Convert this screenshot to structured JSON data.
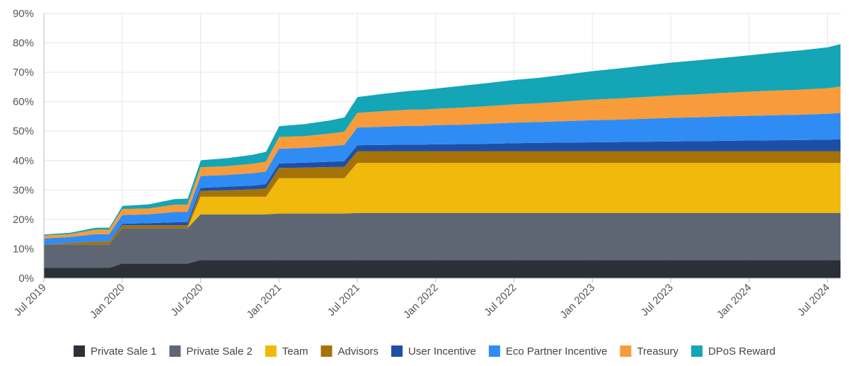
{
  "chart_data": {
    "type": "area",
    "stacked": true,
    "title": "",
    "xlabel": "",
    "ylabel": "",
    "ylim": [
      0,
      90
    ],
    "y_ticks": [
      "0%",
      "10%",
      "20%",
      "30%",
      "40%",
      "50%",
      "60%",
      "70%",
      "80%",
      "90%"
    ],
    "x_ticks": [
      "Jul 2019",
      "Jan 2020",
      "Jul 2020",
      "Jan 2021",
      "Jul 2021",
      "Jan 2022",
      "Jul 2022",
      "Jan 2023",
      "Jul 2023",
      "Jan 2024",
      "Jul 2024"
    ],
    "x_range_months": [
      0,
      61
    ],
    "x_months": [
      0,
      2,
      4,
      5,
      6,
      8,
      10,
      11,
      12,
      14,
      16,
      17,
      18,
      20,
      22,
      23,
      24,
      26,
      28,
      29,
      30,
      32,
      34,
      35,
      36,
      38,
      40,
      42,
      44,
      46,
      48,
      50,
      52,
      54,
      56,
      58,
      60,
      61
    ],
    "legend_position": "bottom",
    "series": [
      {
        "name": "Private Sale 1",
        "color": "#2b2f38",
        "values": [
          3.5,
          3.5,
          3.5,
          3.5,
          5,
          5,
          5,
          5,
          6.2,
          6.2,
          6.2,
          6.2,
          6.2,
          6.2,
          6.2,
          6.2,
          6.2,
          6.2,
          6.2,
          6.2,
          6.2,
          6.2,
          6.2,
          6.2,
          6.2,
          6.2,
          6.2,
          6.2,
          6.2,
          6.2,
          6.2,
          6.2,
          6.2,
          6.2,
          6.2,
          6.2,
          6.2,
          6.2
        ]
      },
      {
        "name": "Private Sale 2",
        "color": "#5f6673",
        "values": [
          8,
          8,
          8,
          8,
          12,
          12,
          12,
          12,
          15.5,
          15.5,
          15.5,
          15.5,
          15.8,
          15.8,
          15.8,
          15.8,
          16,
          16,
          16,
          16,
          16,
          16,
          16,
          16,
          16,
          16,
          16,
          16,
          16,
          16,
          16,
          16,
          16,
          16,
          16,
          16,
          16,
          16
        ]
      },
      {
        "name": "Team",
        "color": "#f0b90b",
        "values": [
          0,
          0,
          0,
          0,
          0,
          0,
          0,
          0,
          6,
          6,
          6,
          6,
          12,
          12,
          12,
          12,
          17,
          17,
          17,
          17,
          17,
          17,
          17,
          17,
          17,
          17,
          17,
          17,
          17,
          17,
          17,
          17,
          17,
          17,
          17,
          17,
          17,
          17
        ]
      },
      {
        "name": "Advisors",
        "color": "#a57208",
        "values": [
          0,
          0.5,
          1,
          1,
          1,
          1,
          1,
          1,
          2,
          2.2,
          2.5,
          2.8,
          3.5,
          3.6,
          3.8,
          3.8,
          4,
          4,
          4,
          4,
          4,
          4,
          4,
          4,
          4,
          4,
          4,
          4,
          4,
          4,
          4,
          4,
          4,
          4,
          4,
          4,
          4,
          4
        ]
      },
      {
        "name": "User Incentive",
        "color": "#1e4fa8",
        "values": [
          0,
          0,
          0,
          0,
          0.5,
          0.7,
          1,
          1,
          1,
          1.2,
          1.3,
          1.5,
          1.5,
          1.7,
          1.8,
          2,
          2,
          2.1,
          2.2,
          2.2,
          2.3,
          2.4,
          2.5,
          2.6,
          2.7,
          2.8,
          2.9,
          3,
          3.1,
          3.2,
          3.3,
          3.4,
          3.5,
          3.6,
          3.7,
          3.8,
          3.9,
          4
        ]
      },
      {
        "name": "Eco Partner Incentive",
        "color": "#2f8cf5",
        "values": [
          2,
          2,
          2.5,
          2.5,
          3,
          3,
          3.5,
          3.5,
          4,
          4,
          4.2,
          4.3,
          5,
          5,
          5.3,
          5.5,
          6,
          6.2,
          6.4,
          6.4,
          6.5,
          6.6,
          6.8,
          6.9,
          7,
          7.1,
          7.3,
          7.5,
          7.6,
          7.8,
          8,
          8.1,
          8.3,
          8.4,
          8.5,
          8.6,
          8.8,
          9
        ]
      },
      {
        "name": "Treasury",
        "color": "#f89b3a",
        "values": [
          1,
          1,
          1.5,
          1.5,
          2,
          2,
          2.5,
          2.5,
          3,
          3,
          3.2,
          3.3,
          4,
          4,
          4.3,
          4.5,
          5,
          5.3,
          5.5,
          5.5,
          5.6,
          5.8,
          6,
          6.1,
          6.2,
          6.4,
          6.7,
          7,
          7.2,
          7.4,
          7.6,
          7.8,
          8,
          8.2,
          8.4,
          8.5,
          8.7,
          9
        ]
      },
      {
        "name": "DPoS Reward",
        "color": "#14a5b6",
        "values": [
          0.5,
          0.6,
          0.8,
          0.8,
          1.2,
          1.5,
          2,
          2.2,
          2.5,
          2.8,
          3.2,
          3.5,
          3.8,
          4.2,
          4.6,
          5,
          5.5,
          6,
          6.5,
          6.8,
          7,
          7.5,
          8,
          8.2,
          8.4,
          8.8,
          9.3,
          9.8,
          10.3,
          10.8,
          11.3,
          11.7,
          12,
          12.5,
          13,
          13.5,
          14,
          14.5
        ]
      }
    ]
  }
}
